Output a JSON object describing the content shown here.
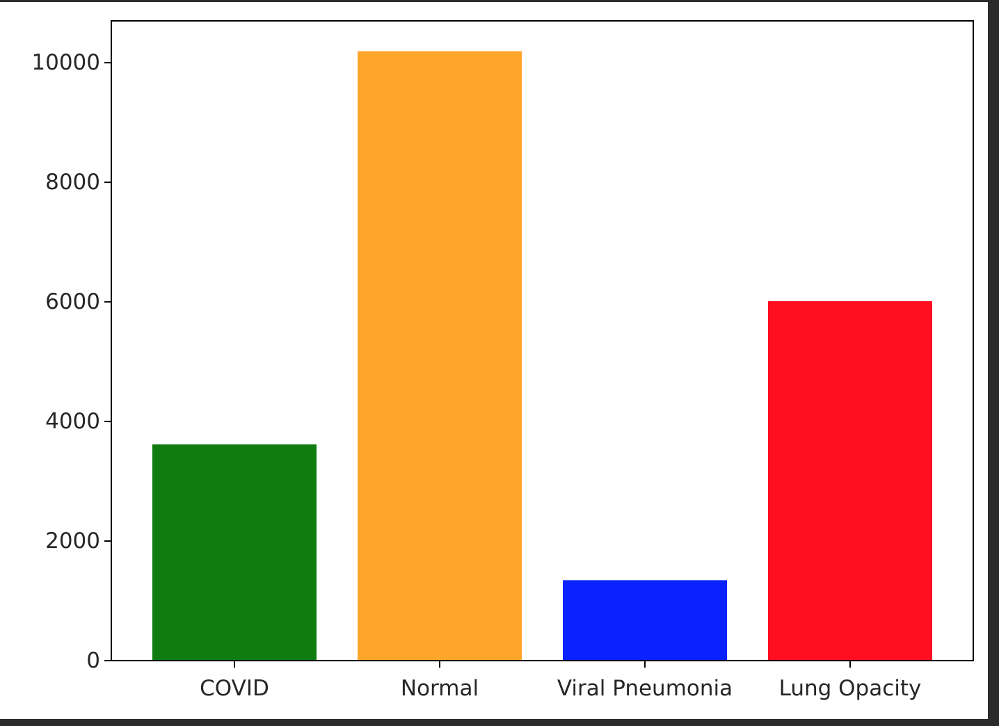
{
  "chart_data": {
    "type": "bar",
    "title": "",
    "xlabel": "",
    "ylabel": "",
    "categories": [
      "COVID",
      "Normal",
      "Viral Pneumonia",
      "Lung Opacity"
    ],
    "values": [
      3616,
      10192,
      1345,
      6012
    ],
    "colors": [
      "#107c10",
      "#ffa52a",
      "#0a22ff",
      "#ff0f1f"
    ],
    "ylim": [
      0,
      10700
    ],
    "yticks": [
      0,
      2000,
      4000,
      6000,
      8000,
      10000
    ],
    "ytick_labels": [
      "0",
      "2000",
      "4000",
      "6000",
      "8000",
      "10000"
    ],
    "grid": false
  }
}
